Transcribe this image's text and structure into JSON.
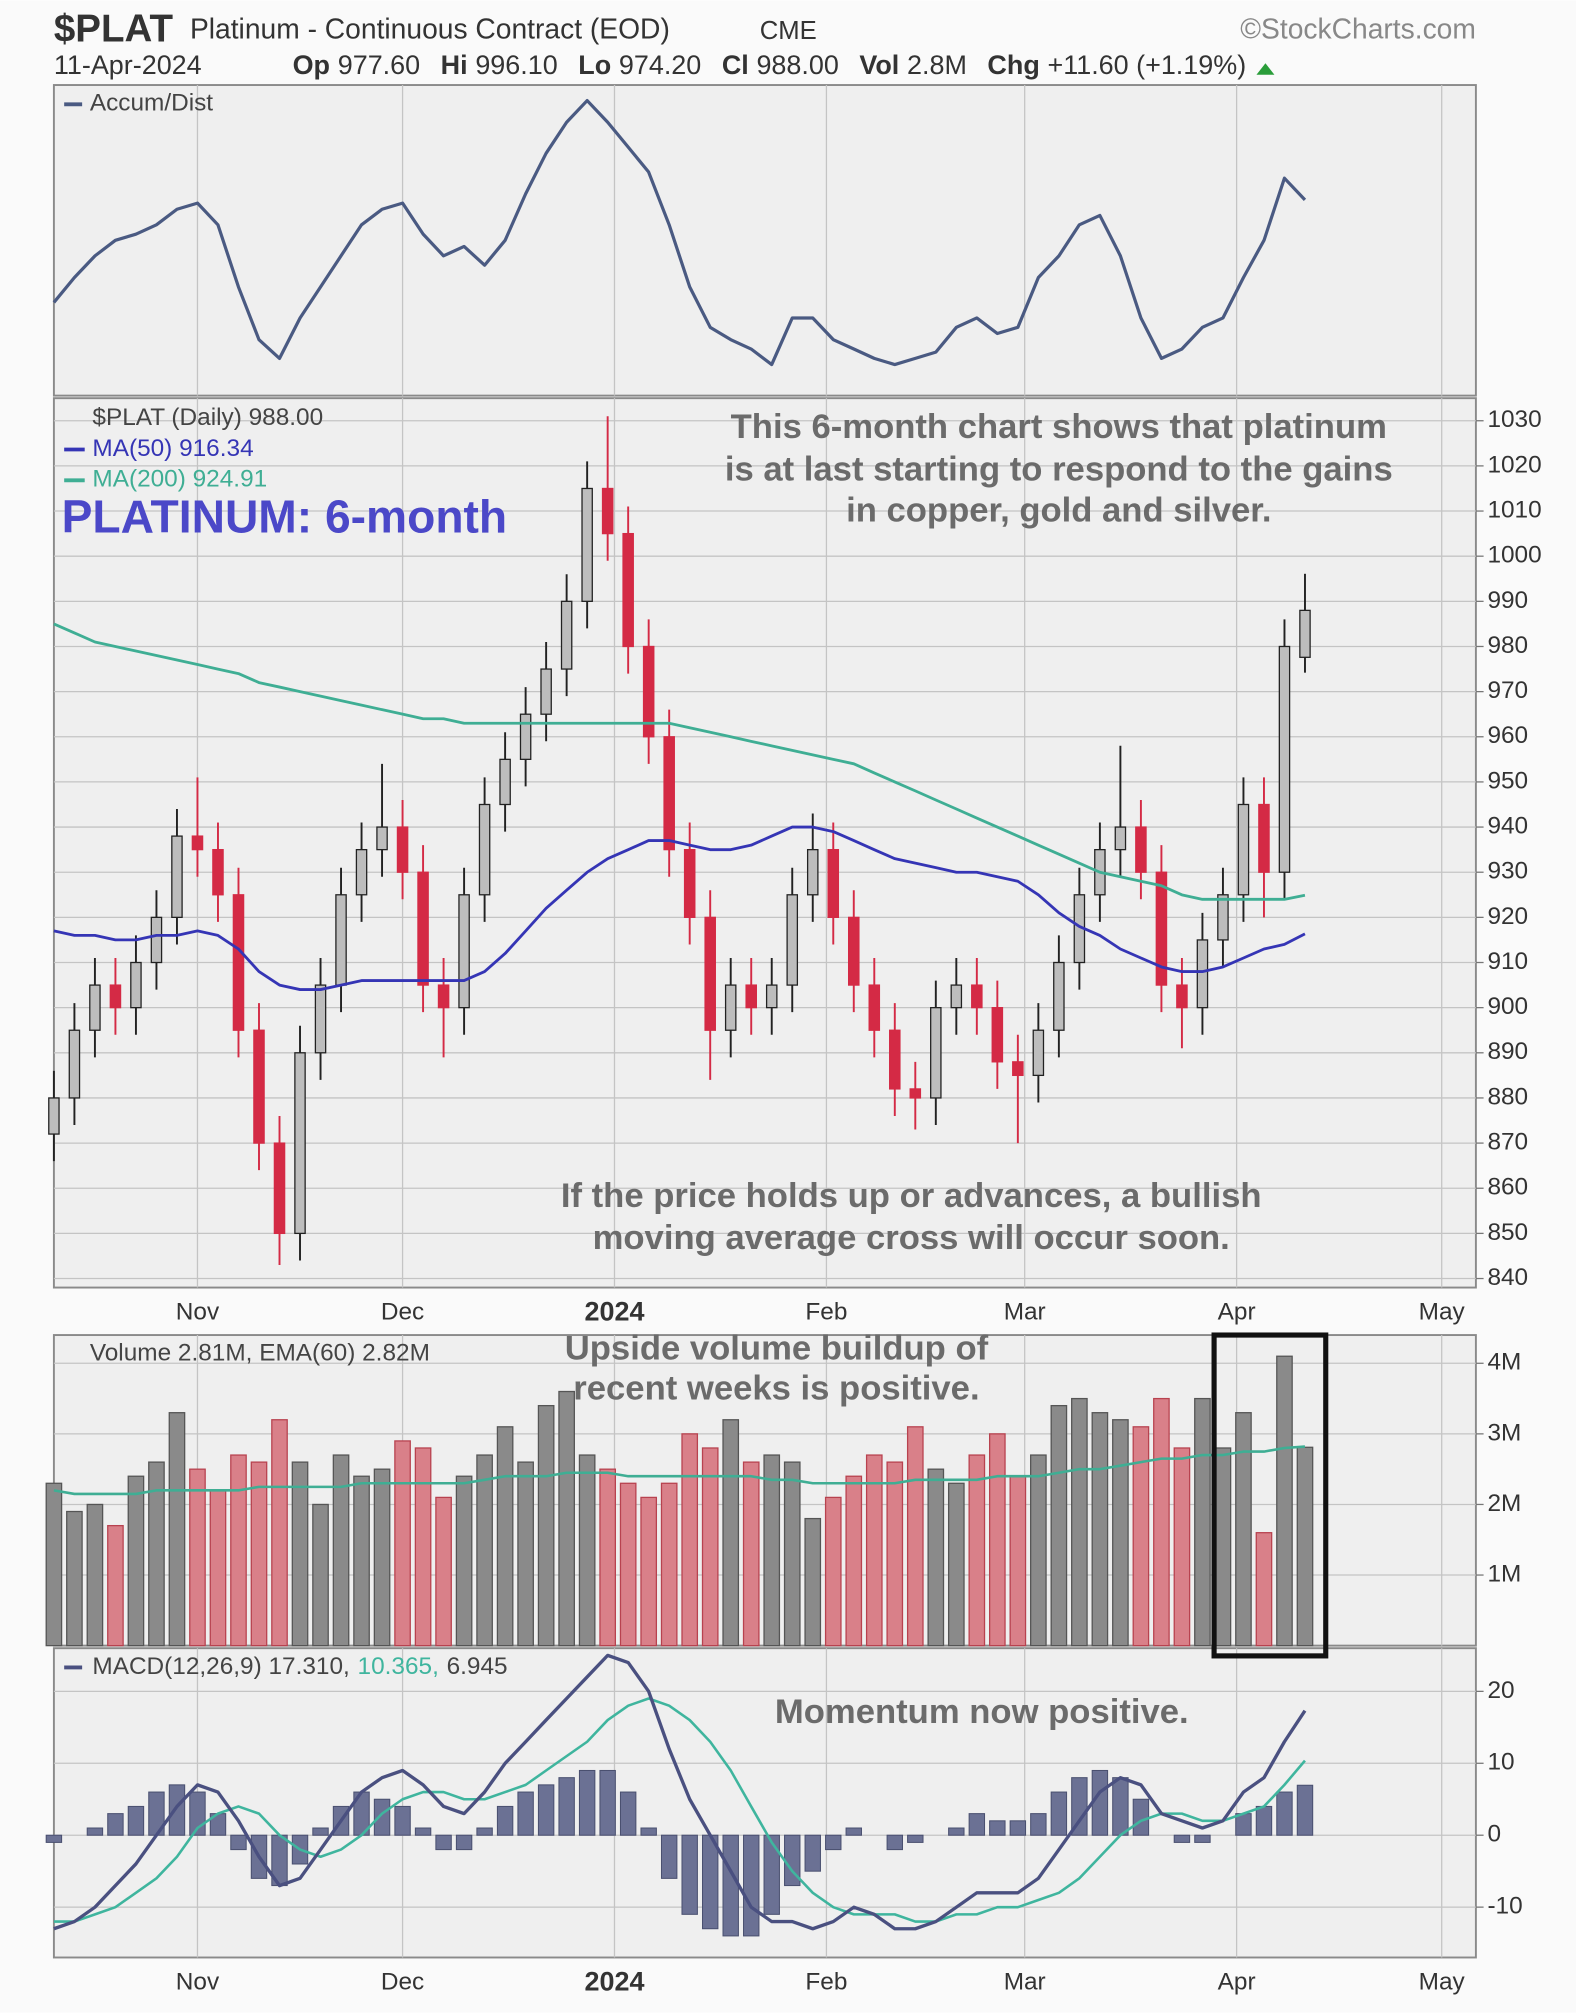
{
  "header": {
    "symbol": "$PLAT",
    "name": "Platinum - Continuous Contract (EOD)",
    "exchange": "CME",
    "source": "©StockCharts.com",
    "date": "11-Apr-2024",
    "quote": [
      {
        "label": "Op",
        "value": "977.60"
      },
      {
        "label": "Hi",
        "value": "996.10"
      },
      {
        "label": "Lo",
        "value": "974.20"
      },
      {
        "label": "Cl",
        "value": "988.00"
      },
      {
        "label": "Vol",
        "value": "2.8M"
      },
      {
        "label": "Chg",
        "value": "+11.60 (+1.19%)"
      }
    ]
  },
  "chart_data": [
    {
      "type": "line",
      "legend": "Accum/Dist",
      "color": "#4a5a82",
      "xlim": [
        0,
        208
      ],
      "ylim": [
        0,
        100
      ],
      "x": [
        0,
        3,
        6,
        9,
        12,
        15,
        18,
        21,
        24,
        27,
        30,
        33,
        36,
        39,
        42,
        45,
        48,
        51,
        54,
        57,
        60,
        63,
        66,
        69,
        72,
        75,
        78,
        81,
        84,
        87,
        90,
        93,
        96,
        99,
        102,
        105,
        108,
        111,
        114,
        117,
        120,
        123,
        126,
        129,
        132,
        135,
        138,
        141,
        144,
        147,
        150,
        153,
        156,
        159,
        162,
        165,
        168,
        171,
        174,
        177,
        180,
        183
      ],
      "values": [
        30,
        38,
        45,
        50,
        52,
        55,
        60,
        62,
        55,
        35,
        18,
        12,
        25,
        35,
        45,
        55,
        60,
        62,
        52,
        45,
        48,
        42,
        50,
        65,
        78,
        88,
        95,
        88,
        80,
        72,
        55,
        35,
        22,
        18,
        15,
        10,
        25,
        25,
        18,
        15,
        12,
        10,
        12,
        14,
        22,
        25,
        20,
        22,
        38,
        45,
        55,
        58,
        45,
        25,
        12,
        15,
        22,
        25,
        38,
        50,
        70,
        63
      ]
    },
    {
      "type": "candlestick",
      "title": "PLATINUM: 6-month",
      "legend": "$PLAT (Daily) 988.00",
      "annotations": [
        "This 6-month chart shows that platinum",
        "is at last starting to respond to the gains",
        "in copper, gold and silver.",
        "If the price holds up or advances, a bullish",
        "moving average cross will occur soon."
      ],
      "up_color": "#555555",
      "down_color": "#d42a45",
      "xlim": [
        0,
        208
      ],
      "ylim": [
        838,
        1035
      ],
      "yticks": [
        840,
        850,
        860,
        870,
        880,
        890,
        900,
        910,
        920,
        930,
        940,
        950,
        960,
        970,
        980,
        990,
        1000,
        1010,
        1020,
        1030
      ],
      "xticks": [
        {
          "value": 21,
          "label": "Nov"
        },
        {
          "value": 51,
          "label": "Dec"
        },
        {
          "value": 82,
          "label": "2024"
        },
        {
          "value": 113,
          "label": "Feb"
        },
        {
          "value": 142,
          "label": "Mar"
        },
        {
          "value": 173,
          "label": "Apr"
        },
        {
          "value": 203,
          "label": "May"
        }
      ],
      "grid": true,
      "x": [
        0,
        3,
        6,
        9,
        12,
        15,
        18,
        21,
        24,
        27,
        30,
        33,
        36,
        39,
        42,
        45,
        48,
        51,
        54,
        57,
        60,
        63,
        66,
        69,
        72,
        75,
        78,
        81,
        84,
        87,
        90,
        93,
        96,
        99,
        102,
        105,
        108,
        111,
        114,
        117,
        120,
        123,
        126,
        129,
        132,
        135,
        138,
        141,
        144,
        147,
        150,
        153,
        156,
        159,
        162,
        165,
        168,
        171,
        174,
        177,
        180,
        183
      ],
      "open": [
        872,
        880,
        895,
        905,
        900,
        910,
        920,
        938,
        935,
        925,
        895,
        870,
        850,
        890,
        905,
        925,
        935,
        940,
        930,
        905,
        900,
        925,
        945,
        955,
        965,
        975,
        990,
        1015,
        1005,
        980,
        960,
        935,
        920,
        895,
        905,
        900,
        905,
        925,
        935,
        920,
        905,
        895,
        882,
        880,
        900,
        905,
        900,
        888,
        885,
        895,
        910,
        925,
        935,
        940,
        930,
        905,
        900,
        915,
        925,
        945,
        930,
        977.6
      ],
      "high": [
        886,
        901,
        911,
        911,
        916,
        926,
        944,
        951,
        941,
        931,
        901,
        876,
        896,
        911,
        931,
        941,
        954,
        946,
        936,
        911,
        931,
        951,
        961,
        971,
        981,
        996,
        1021,
        1031,
        1011,
        986,
        966,
        941,
        926,
        911,
        911,
        911,
        931,
        943,
        941,
        926,
        911,
        901,
        888,
        906,
        911,
        911,
        906,
        894,
        901,
        916,
        931,
        941,
        958,
        946,
        936,
        911,
        921,
        931,
        951,
        951,
        986,
        996.1
      ],
      "low": [
        866,
        874,
        889,
        894,
        894,
        904,
        914,
        929,
        919,
        889,
        864,
        843,
        844,
        884,
        899,
        919,
        929,
        924,
        899,
        889,
        894,
        919,
        939,
        949,
        959,
        969,
        984,
        999,
        974,
        954,
        929,
        914,
        884,
        889,
        894,
        894,
        899,
        919,
        914,
        899,
        889,
        876,
        873,
        874,
        894,
        894,
        882,
        870,
        879,
        889,
        904,
        919,
        929,
        924,
        899,
        891,
        894,
        909,
        919,
        920,
        924,
        974.2
      ],
      "close": [
        880,
        895,
        905,
        900,
        910,
        920,
        938,
        935,
        925,
        895,
        870,
        850,
        890,
        905,
        925,
        935,
        940,
        930,
        905,
        900,
        925,
        945,
        955,
        965,
        975,
        990,
        1015,
        1005,
        980,
        960,
        935,
        920,
        895,
        905,
        900,
        905,
        925,
        935,
        920,
        905,
        895,
        882,
        880,
        900,
        905,
        900,
        888,
        885,
        895,
        910,
        925,
        935,
        940,
        930,
        905,
        900,
        915,
        925,
        945,
        930,
        980,
        988
      ],
      "series": [
        {
          "name": "MA(50) 916.34",
          "color": "#3535b5",
          "values": [
            917,
            916,
            916,
            915,
            915,
            916,
            916,
            917,
            916,
            913,
            908,
            905,
            904,
            904,
            905,
            906,
            906,
            906,
            906,
            906,
            906,
            908,
            912,
            917,
            922,
            926,
            930,
            933,
            935,
            937,
            937,
            936,
            935,
            935,
            936,
            938,
            940,
            940,
            939,
            937,
            935,
            933,
            932,
            931,
            930,
            930,
            929,
            928,
            925,
            921,
            918,
            916,
            913,
            911,
            909,
            908,
            908,
            909,
            911,
            913,
            914,
            916.34
          ]
        },
        {
          "name": "MA(200) 924.91",
          "color": "#3fae94",
          "values": [
            985,
            983,
            981,
            980,
            979,
            978,
            977,
            976,
            975,
            974,
            972,
            971,
            970,
            969,
            968,
            967,
            966,
            965,
            964,
            964,
            963,
            963,
            963,
            963,
            963,
            963,
            963,
            963,
            963,
            963,
            963,
            962,
            961,
            960,
            959,
            958,
            957,
            956,
            955,
            954,
            952,
            950,
            948,
            946,
            944,
            942,
            940,
            938,
            936,
            934,
            932,
            930,
            929,
            928,
            927,
            925,
            924,
            924,
            924,
            924,
            924,
            924.91
          ]
        }
      ]
    },
    {
      "type": "bar",
      "legend": "Volume 2.81M, EMA(60) 2.82M",
      "annotations": [
        "Upside volume buildup of",
        "recent weeks is positive."
      ],
      "up_color": "#8a8a8a",
      "down_color": "#d98089",
      "xlim": [
        0,
        208
      ],
      "ylim": [
        0,
        4.4
      ],
      "yticks": [
        {
          "value": 1,
          "label": "1M"
        },
        {
          "value": 2,
          "label": "2M"
        },
        {
          "value": 3,
          "label": "3M"
        },
        {
          "value": 4,
          "label": "4M"
        }
      ],
      "x": [
        0,
        3,
        6,
        9,
        12,
        15,
        18,
        21,
        24,
        27,
        30,
        33,
        36,
        39,
        42,
        45,
        48,
        51,
        54,
        57,
        60,
        63,
        66,
        69,
        72,
        75,
        78,
        81,
        84,
        87,
        90,
        93,
        96,
        99,
        102,
        105,
        108,
        111,
        114,
        117,
        120,
        123,
        126,
        129,
        132,
        135,
        138,
        141,
        144,
        147,
        150,
        153,
        156,
        159,
        162,
        165,
        168,
        171,
        174,
        177,
        180,
        183
      ],
      "values": [
        2.3,
        1.9,
        2.0,
        1.7,
        2.4,
        2.6,
        3.3,
        2.5,
        2.2,
        2.7,
        2.6,
        3.2,
        2.6,
        2.0,
        2.7,
        2.4,
        2.5,
        2.9,
        2.8,
        2.1,
        2.4,
        2.7,
        3.1,
        2.6,
        3.4,
        3.6,
        2.7,
        2.5,
        2.3,
        2.1,
        2.3,
        3.0,
        2.8,
        3.2,
        2.6,
        2.7,
        2.6,
        1.8,
        2.1,
        2.4,
        2.7,
        2.6,
        3.1,
        2.5,
        2.3,
        2.7,
        3.0,
        2.4,
        2.7,
        3.4,
        3.5,
        3.3,
        3.2,
        3.1,
        3.5,
        2.8,
        3.5,
        2.8,
        3.3,
        1.6,
        4.1,
        2.81
      ],
      "series": [
        {
          "name": "EMA(60)",
          "color": "#3fae94",
          "values": [
            2.2,
            2.15,
            2.15,
            2.15,
            2.15,
            2.2,
            2.2,
            2.2,
            2.2,
            2.2,
            2.25,
            2.25,
            2.25,
            2.25,
            2.25,
            2.3,
            2.3,
            2.3,
            2.3,
            2.3,
            2.3,
            2.35,
            2.4,
            2.4,
            2.4,
            2.45,
            2.45,
            2.45,
            2.4,
            2.4,
            2.4,
            2.4,
            2.4,
            2.4,
            2.4,
            2.35,
            2.35,
            2.3,
            2.3,
            2.3,
            2.3,
            2.3,
            2.35,
            2.35,
            2.35,
            2.35,
            2.4,
            2.4,
            2.4,
            2.45,
            2.5,
            2.5,
            2.55,
            2.6,
            2.65,
            2.65,
            2.7,
            2.7,
            2.75,
            2.75,
            2.8,
            2.82
          ]
        }
      ]
    },
    {
      "type": "macd",
      "legend": [
        "MACD(12,26,9) 17.310,",
        "10.365,",
        "6.945"
      ],
      "annotations": [
        "Momentum now positive."
      ],
      "xlim": [
        0,
        208
      ],
      "ylim": [
        -17,
        26
      ],
      "yticks": [
        -10,
        0,
        10,
        20
      ],
      "xticks": [
        {
          "value": 21,
          "label": "Nov"
        },
        {
          "value": 51,
          "label": "Dec"
        },
        {
          "value": 82,
          "label": "2024"
        },
        {
          "value": 113,
          "label": "Feb"
        },
        {
          "value": 142,
          "label": "Mar"
        },
        {
          "value": 173,
          "label": "Apr"
        },
        {
          "value": 203,
          "label": "May"
        }
      ],
      "x": [
        0,
        3,
        6,
        9,
        12,
        15,
        18,
        21,
        24,
        27,
        30,
        33,
        36,
        39,
        42,
        45,
        48,
        51,
        54,
        57,
        60,
        63,
        66,
        69,
        72,
        75,
        78,
        81,
        84,
        87,
        90,
        93,
        96,
        99,
        102,
        105,
        108,
        111,
        114,
        117,
        120,
        123,
        126,
        129,
        132,
        135,
        138,
        141,
        144,
        147,
        150,
        153,
        156,
        159,
        162,
        165,
        168,
        171,
        174,
        177,
        180,
        183
      ],
      "series": [
        {
          "name": "MACD",
          "color": "#4a5080",
          "values": [
            -13,
            -12,
            -10,
            -7,
            -4,
            0,
            4,
            7,
            6,
            2,
            -3,
            -7,
            -6,
            -2,
            2,
            6,
            8,
            9,
            7,
            4,
            3,
            6,
            10,
            13,
            16,
            19,
            22,
            25,
            24,
            20,
            12,
            5,
            0,
            -5,
            -10,
            -12,
            -12,
            -13,
            -12,
            -10,
            -11,
            -13,
            -13,
            -12,
            -10,
            -8,
            -8,
            -8,
            -6,
            -2,
            2,
            6,
            8,
            7,
            3,
            2,
            1,
            2,
            6,
            8,
            13,
            17.31
          ]
        },
        {
          "name": "Signal",
          "color": "#3fb59e",
          "values": [
            -12,
            -12,
            -11,
            -10,
            -8,
            -6,
            -3,
            1,
            3,
            4,
            3,
            0,
            -2,
            -3,
            -2,
            0,
            3,
            5,
            6,
            6,
            5,
            5,
            6,
            7,
            9,
            11,
            13,
            16,
            18,
            19,
            18,
            16,
            13,
            9,
            4,
            -1,
            -5,
            -8,
            -10,
            -11,
            -11,
            -11,
            -12,
            -12,
            -11,
            -11,
            -10,
            -10,
            -9,
            -8,
            -6,
            -3,
            0,
            2,
            3,
            3,
            2,
            2,
            3,
            4,
            7,
            10.365
          ]
        },
        {
          "name": "Histogram",
          "color": "#6b7194",
          "values": [
            -1,
            0,
            1,
            3,
            4,
            6,
            7,
            6,
            3,
            -2,
            -6,
            -7,
            -4,
            1,
            4,
            6,
            5,
            4,
            1,
            -2,
            -2,
            1,
            4,
            6,
            7,
            8,
            9,
            9,
            6,
            1,
            -6,
            -11,
            -13,
            -14,
            -14,
            -11,
            -7,
            -5,
            -2,
            1,
            0,
            -2,
            -1,
            0,
            1,
            3,
            2,
            2,
            3,
            6,
            8,
            9,
            8,
            5,
            0,
            -1,
            -1,
            0,
            3,
            4,
            6,
            6.945
          ]
        }
      ]
    }
  ]
}
